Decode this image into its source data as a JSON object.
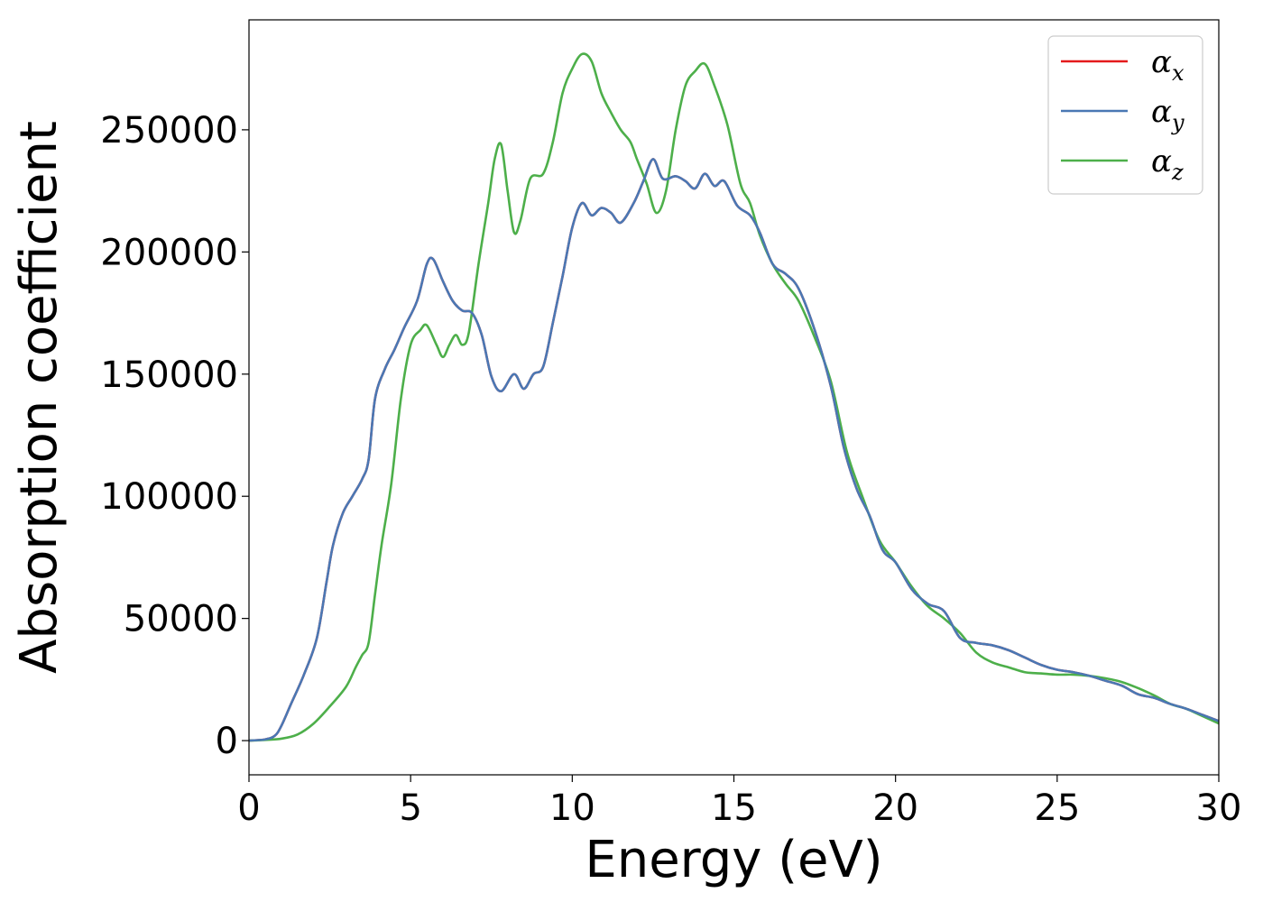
{
  "chart_data": {
    "type": "line",
    "title": "",
    "xlabel": "Energy (eV)",
    "ylabel": "Absorption coefficient",
    "xlim": [
      0,
      30
    ],
    "ylim": [
      -14000,
      295000
    ],
    "xticks": [
      0,
      5,
      10,
      15,
      20,
      25,
      30
    ],
    "yticks": [
      0,
      50000,
      100000,
      150000,
      200000,
      250000
    ],
    "grid": false,
    "legend_position": "top-right",
    "series": [
      {
        "name": "αx",
        "symbol": "α",
        "subscript": "x",
        "color": "#e41a1c",
        "points": [
          [
            0,
            0
          ],
          [
            0.5,
            500
          ],
          [
            0.8,
            2000
          ],
          [
            1.0,
            6000
          ],
          [
            1.3,
            15000
          ],
          [
            1.7,
            27000
          ],
          [
            2.1,
            42000
          ],
          [
            2.4,
            65000
          ],
          [
            2.6,
            80000
          ],
          [
            2.9,
            93000
          ],
          [
            3.2,
            100000
          ],
          [
            3.5,
            107000
          ],
          [
            3.7,
            115000
          ],
          [
            3.9,
            140000
          ],
          [
            4.2,
            152000
          ],
          [
            4.5,
            160000
          ],
          [
            4.8,
            169000
          ],
          [
            5.2,
            180000
          ],
          [
            5.5,
            195000
          ],
          [
            5.7,
            197000
          ],
          [
            6.0,
            188000
          ],
          [
            6.3,
            180000
          ],
          [
            6.6,
            176000
          ],
          [
            6.9,
            175000
          ],
          [
            7.2,
            166000
          ],
          [
            7.5,
            149000
          ],
          [
            7.8,
            143000
          ],
          [
            8.2,
            150000
          ],
          [
            8.5,
            144000
          ],
          [
            8.8,
            150000
          ],
          [
            9.1,
            153000
          ],
          [
            9.4,
            171000
          ],
          [
            9.7,
            190000
          ],
          [
            10.0,
            210000
          ],
          [
            10.3,
            220000
          ],
          [
            10.6,
            215000
          ],
          [
            10.9,
            218000
          ],
          [
            11.2,
            216000
          ],
          [
            11.5,
            212000
          ],
          [
            11.9,
            220000
          ],
          [
            12.2,
            229000
          ],
          [
            12.5,
            238000
          ],
          [
            12.8,
            230000
          ],
          [
            13.2,
            231000
          ],
          [
            13.5,
            229000
          ],
          [
            13.8,
            226000
          ],
          [
            14.1,
            232000
          ],
          [
            14.4,
            227000
          ],
          [
            14.7,
            229000
          ],
          [
            15.1,
            219000
          ],
          [
            15.5,
            215000
          ],
          [
            15.8,
            208000
          ],
          [
            16.2,
            195000
          ],
          [
            16.6,
            191000
          ],
          [
            17.0,
            185000
          ],
          [
            17.5,
            168000
          ],
          [
            18.0,
            145000
          ],
          [
            18.4,
            120000
          ],
          [
            18.8,
            103000
          ],
          [
            19.2,
            92000
          ],
          [
            19.6,
            78000
          ],
          [
            20.0,
            73000
          ],
          [
            20.5,
            62000
          ],
          [
            21.0,
            56000
          ],
          [
            21.5,
            53000
          ],
          [
            22.0,
            42000
          ],
          [
            22.5,
            40000
          ],
          [
            23.0,
            39000
          ],
          [
            23.5,
            37000
          ],
          [
            24.0,
            34000
          ],
          [
            24.5,
            31000
          ],
          [
            25.0,
            29000
          ],
          [
            25.5,
            28000
          ],
          [
            26.0,
            26500
          ],
          [
            26.5,
            24500
          ],
          [
            27.0,
            22500
          ],
          [
            27.5,
            19000
          ],
          [
            28.0,
            17500
          ],
          [
            28.5,
            15000
          ],
          [
            29.0,
            13000
          ],
          [
            29.5,
            10500
          ],
          [
            30.0,
            8000
          ]
        ]
      },
      {
        "name": "αy",
        "symbol": "α",
        "subscript": "y",
        "color": "#4a78b4",
        "points": [
          [
            0,
            0
          ],
          [
            0.5,
            500
          ],
          [
            0.8,
            2000
          ],
          [
            1.0,
            6000
          ],
          [
            1.3,
            15000
          ],
          [
            1.7,
            27000
          ],
          [
            2.1,
            42000
          ],
          [
            2.4,
            65000
          ],
          [
            2.6,
            80000
          ],
          [
            2.9,
            93000
          ],
          [
            3.2,
            100000
          ],
          [
            3.5,
            107000
          ],
          [
            3.7,
            115000
          ],
          [
            3.9,
            140000
          ],
          [
            4.2,
            152000
          ],
          [
            4.5,
            160000
          ],
          [
            4.8,
            169000
          ],
          [
            5.2,
            180000
          ],
          [
            5.5,
            195000
          ],
          [
            5.7,
            197000
          ],
          [
            6.0,
            188000
          ],
          [
            6.3,
            180000
          ],
          [
            6.6,
            176000
          ],
          [
            6.9,
            175000
          ],
          [
            7.2,
            166000
          ],
          [
            7.5,
            149000
          ],
          [
            7.8,
            143000
          ],
          [
            8.2,
            150000
          ],
          [
            8.5,
            144000
          ],
          [
            8.8,
            150000
          ],
          [
            9.1,
            153000
          ],
          [
            9.4,
            171000
          ],
          [
            9.7,
            190000
          ],
          [
            10.0,
            210000
          ],
          [
            10.3,
            220000
          ],
          [
            10.6,
            215000
          ],
          [
            10.9,
            218000
          ],
          [
            11.2,
            216000
          ],
          [
            11.5,
            212000
          ],
          [
            11.9,
            220000
          ],
          [
            12.2,
            229000
          ],
          [
            12.5,
            238000
          ],
          [
            12.8,
            230000
          ],
          [
            13.2,
            231000
          ],
          [
            13.5,
            229000
          ],
          [
            13.8,
            226000
          ],
          [
            14.1,
            232000
          ],
          [
            14.4,
            227000
          ],
          [
            14.7,
            229000
          ],
          [
            15.1,
            219000
          ],
          [
            15.5,
            215000
          ],
          [
            15.8,
            208000
          ],
          [
            16.2,
            195000
          ],
          [
            16.6,
            191000
          ],
          [
            17.0,
            185000
          ],
          [
            17.5,
            168000
          ],
          [
            18.0,
            145000
          ],
          [
            18.4,
            120000
          ],
          [
            18.8,
            103000
          ],
          [
            19.2,
            92000
          ],
          [
            19.6,
            78000
          ],
          [
            20.0,
            73000
          ],
          [
            20.5,
            62000
          ],
          [
            21.0,
            56000
          ],
          [
            21.5,
            53000
          ],
          [
            22.0,
            42000
          ],
          [
            22.5,
            40000
          ],
          [
            23.0,
            39000
          ],
          [
            23.5,
            37000
          ],
          [
            24.0,
            34000
          ],
          [
            24.5,
            31000
          ],
          [
            25.0,
            29000
          ],
          [
            25.5,
            28000
          ],
          [
            26.0,
            26500
          ],
          [
            26.5,
            24500
          ],
          [
            27.0,
            22500
          ],
          [
            27.5,
            19000
          ],
          [
            28.0,
            17500
          ],
          [
            28.5,
            15000
          ],
          [
            29.0,
            13000
          ],
          [
            29.5,
            10500
          ],
          [
            30.0,
            8000
          ]
        ]
      },
      {
        "name": "αz",
        "symbol": "α",
        "subscript": "z",
        "color": "#4daf4a",
        "points": [
          [
            0,
            0
          ],
          [
            0.5,
            300
          ],
          [
            1.0,
            800
          ],
          [
            1.5,
            2500
          ],
          [
            2.0,
            7000
          ],
          [
            2.5,
            14000
          ],
          [
            3.0,
            22000
          ],
          [
            3.3,
            30000
          ],
          [
            3.5,
            35000
          ],
          [
            3.7,
            40000
          ],
          [
            3.9,
            60000
          ],
          [
            4.1,
            80000
          ],
          [
            4.4,
            105000
          ],
          [
            4.7,
            140000
          ],
          [
            5.0,
            162000
          ],
          [
            5.3,
            168000
          ],
          [
            5.5,
            170000
          ],
          [
            5.8,
            162000
          ],
          [
            6.0,
            157000
          ],
          [
            6.2,
            162000
          ],
          [
            6.4,
            166000
          ],
          [
            6.6,
            162000
          ],
          [
            6.8,
            167000
          ],
          [
            7.1,
            195000
          ],
          [
            7.4,
            220000
          ],
          [
            7.6,
            238000
          ],
          [
            7.8,
            244000
          ],
          [
            8.0,
            225000
          ],
          [
            8.2,
            208000
          ],
          [
            8.4,
            213000
          ],
          [
            8.7,
            230000
          ],
          [
            9.1,
            232000
          ],
          [
            9.4,
            245000
          ],
          [
            9.7,
            265000
          ],
          [
            10.0,
            275000
          ],
          [
            10.3,
            281000
          ],
          [
            10.6,
            278000
          ],
          [
            10.9,
            265000
          ],
          [
            11.2,
            257000
          ],
          [
            11.5,
            250000
          ],
          [
            11.8,
            245000
          ],
          [
            12.0,
            238000
          ],
          [
            12.3,
            228000
          ],
          [
            12.6,
            216000
          ],
          [
            12.9,
            225000
          ],
          [
            13.2,
            250000
          ],
          [
            13.5,
            268000
          ],
          [
            13.8,
            274000
          ],
          [
            14.1,
            277000
          ],
          [
            14.4,
            268000
          ],
          [
            14.8,
            252000
          ],
          [
            15.2,
            228000
          ],
          [
            15.5,
            220000
          ],
          [
            15.8,
            207000
          ],
          [
            16.2,
            195000
          ],
          [
            16.6,
            187000
          ],
          [
            17.0,
            180000
          ],
          [
            17.5,
            165000
          ],
          [
            18.0,
            147000
          ],
          [
            18.5,
            118000
          ],
          [
            19.0,
            99000
          ],
          [
            19.5,
            82000
          ],
          [
            20.0,
            73000
          ],
          [
            20.5,
            63000
          ],
          [
            21.0,
            55000
          ],
          [
            21.5,
            50000
          ],
          [
            22.0,
            44000
          ],
          [
            22.5,
            36000
          ],
          [
            23.0,
            32000
          ],
          [
            23.5,
            30000
          ],
          [
            24.0,
            28000
          ],
          [
            24.5,
            27500
          ],
          [
            25.0,
            27000
          ],
          [
            25.5,
            27000
          ],
          [
            26.0,
            26500
          ],
          [
            26.5,
            25500
          ],
          [
            27.0,
            24000
          ],
          [
            27.5,
            21500
          ],
          [
            28.0,
            18500
          ],
          [
            28.5,
            15000
          ],
          [
            29.0,
            13000
          ],
          [
            29.5,
            10000
          ],
          [
            30.0,
            7000
          ]
        ]
      }
    ]
  }
}
